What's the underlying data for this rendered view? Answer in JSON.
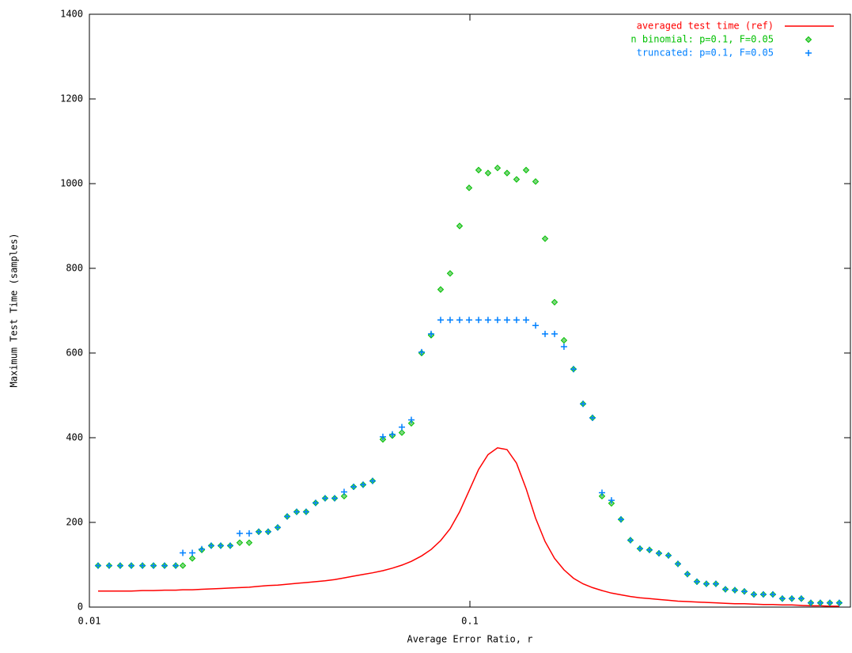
{
  "chart_data": {
    "type": "scatter",
    "x_label": "Average Error Ratio, r",
    "y_label": "Maximum Test Time (samples)",
    "xlim": [
      0.01,
      1
    ],
    "xticks": [
      0.01,
      0.1
    ],
    "x_log": true,
    "ylim": [
      0,
      1400
    ],
    "yticks": [
      0,
      200,
      400,
      600,
      800,
      1000,
      1200,
      1400
    ],
    "legend": "top-right",
    "x": [
      0.01054,
      0.01127,
      0.01205,
      0.01289,
      0.01379,
      0.01474,
      0.01576,
      0.01686,
      0.0176,
      0.01864,
      0.01974,
      0.0209,
      0.02214,
      0.02345,
      0.02483,
      0.0263,
      0.02786,
      0.0295,
      0.03125,
      0.0331,
      0.03505,
      0.03712,
      0.03932,
      0.04164,
      0.04411,
      0.04671,
      0.04948,
      0.0524,
      0.0555,
      0.05906,
      0.06255,
      0.06625,
      0.07016,
      0.07467,
      0.07908,
      0.08376,
      0.08871,
      0.09395,
      0.09952,
      0.1054,
      0.1116,
      0.1182,
      0.1252,
      0.1326,
      0.1405,
      0.1488,
      0.1576,
      0.1669,
      0.1767,
      0.1872,
      0.1983,
      0.21,
      0.2224,
      0.2355,
      0.2495,
      0.2642,
      0.2798,
      0.2964,
      0.3139,
      0.3325,
      0.3521,
      0.3729,
      0.395,
      0.4183,
      0.4431,
      0.4693,
      0.497,
      0.5264,
      0.5575,
      0.5905,
      0.6254,
      0.6623,
      0.7015,
      0.743,
      0.7869,
      0.8334,
      0.8827,
      0.9348
    ],
    "series": [
      {
        "name": "averaged test time (ref)",
        "color": "#ff0000",
        "style": "line",
        "values": [
          38,
          38,
          38,
          38,
          39,
          39,
          40,
          40,
          41,
          41,
          42,
          43,
          44,
          45,
          46,
          47,
          49,
          51,
          52,
          54,
          56,
          58,
          60,
          62,
          65,
          69,
          73,
          77,
          81,
          86,
          92,
          99,
          108,
          121,
          136,
          157,
          185,
          225,
          275,
          325,
          360,
          376,
          372,
          340,
          280,
          210,
          155,
          115,
          88,
          68,
          55,
          46,
          39,
          33,
          29,
          25,
          22,
          20,
          18,
          16,
          14,
          13,
          12,
          11,
          10,
          9,
          8,
          8,
          7,
          6,
          6,
          5,
          5,
          4,
          3,
          3,
          2,
          2
        ]
      },
      {
        "name": "n binomial: p=0.1, F=0.05",
        "color": "#00c000",
        "style": "diamond",
        "values": [
          98,
          98,
          98,
          98,
          98,
          98,
          98,
          98,
          98,
          115,
          135,
          145,
          145,
          145,
          152,
          152,
          178,
          178,
          188,
          214,
          225,
          225,
          246,
          257,
          257,
          262,
          284,
          289,
          298,
          396,
          405,
          412,
          434,
          600,
          642,
          750,
          788,
          900,
          990,
          1032,
          1025,
          1037,
          1025,
          1010,
          1032,
          1005,
          870,
          720,
          630,
          562,
          480,
          447,
          262,
          245,
          207,
          158,
          138,
          135,
          127,
          122,
          102,
          78,
          60,
          55,
          55,
          42,
          40,
          37,
          30,
          30,
          30,
          20,
          20,
          20,
          10,
          10,
          10,
          10
        ]
      },
      {
        "name": "truncated: p=0.1, F=0.05",
        "color": "#0080ff",
        "style": "plus",
        "values": [
          98,
          98,
          98,
          98,
          98,
          98,
          98,
          98,
          128,
          128,
          137,
          145,
          145,
          145,
          174,
          174,
          178,
          178,
          188,
          214,
          225,
          225,
          246,
          257,
          257,
          272,
          284,
          289,
          298,
          402,
          408,
          425,
          442,
          602,
          645,
          678,
          678,
          678,
          678,
          678,
          678,
          678,
          678,
          678,
          678,
          665,
          645,
          645,
          615,
          562,
          480,
          447,
          270,
          252,
          207,
          158,
          138,
          135,
          127,
          122,
          102,
          78,
          60,
          55,
          55,
          42,
          40,
          37,
          30,
          30,
          30,
          20,
          20,
          20,
          10,
          10,
          10,
          10
        ]
      }
    ]
  }
}
